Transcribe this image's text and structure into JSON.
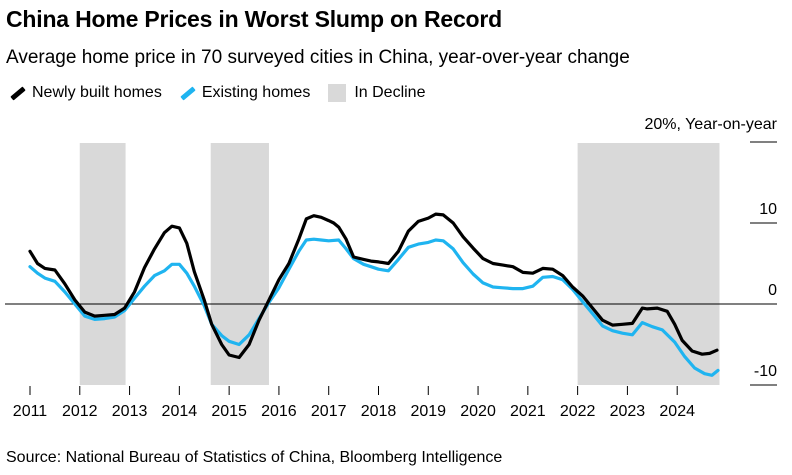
{
  "header": {
    "title": "China Home Prices in Worst Slump on Record",
    "subtitle": "Average home price in 70 surveyed cities in China, year-over-year change"
  },
  "legend": {
    "items": [
      {
        "label": "Newly built homes",
        "color": "#000000",
        "kind": "line"
      },
      {
        "label": "Existing homes",
        "color": "#1fb4f0",
        "kind": "line"
      },
      {
        "label": "In Decline",
        "color": "#d9d9d9",
        "kind": "box"
      }
    ]
  },
  "footer": {
    "source": "Source: National Bureau of Statistics of China, Bloomberg Intelligence"
  },
  "chart_data": {
    "type": "line",
    "ylabel_top": "20%, Year-on-year",
    "ylim": [
      -10,
      20
    ],
    "y_ticks": [
      20,
      10,
      0,
      -10
    ],
    "y_tick_labels": [
      "",
      "10",
      "0",
      "-10"
    ],
    "x_ticks": [
      "2011",
      "2012",
      "2013",
      "2014",
      "2015",
      "2016",
      "2017",
      "2018",
      "2019",
      "2020",
      "2021",
      "2022",
      "2023",
      "2024"
    ],
    "x_range": [
      2011.0,
      2024.9
    ],
    "decline_periods": [
      [
        2012.0,
        2012.92
      ],
      [
        2014.63,
        2015.8
      ],
      [
        2022.0,
        2024.85
      ]
    ],
    "series": [
      {
        "name": "Newly built homes",
        "color": "#000000",
        "points": [
          [
            2011.0,
            6.5
          ],
          [
            2011.15,
            5.0
          ],
          [
            2011.3,
            4.4
          ],
          [
            2011.5,
            4.2
          ],
          [
            2011.7,
            2.5
          ],
          [
            2011.9,
            0.5
          ],
          [
            2012.1,
            -1.0
          ],
          [
            2012.3,
            -1.5
          ],
          [
            2012.5,
            -1.4
          ],
          [
            2012.7,
            -1.3
          ],
          [
            2012.9,
            -0.5
          ],
          [
            2013.1,
            1.5
          ],
          [
            2013.3,
            4.5
          ],
          [
            2013.5,
            6.8
          ],
          [
            2013.7,
            8.8
          ],
          [
            2013.85,
            9.6
          ],
          [
            2014.0,
            9.4
          ],
          [
            2014.15,
            7.5
          ],
          [
            2014.3,
            4.0
          ],
          [
            2014.5,
            0.5
          ],
          [
            2014.65,
            -2.5
          ],
          [
            2014.85,
            -5.0
          ],
          [
            2015.0,
            -6.3
          ],
          [
            2015.2,
            -6.6
          ],
          [
            2015.4,
            -5.0
          ],
          [
            2015.6,
            -2.0
          ],
          [
            2015.8,
            0.5
          ],
          [
            2016.0,
            3.0
          ],
          [
            2016.2,
            5.0
          ],
          [
            2016.4,
            8.0
          ],
          [
            2016.55,
            10.5
          ],
          [
            2016.7,
            10.9
          ],
          [
            2016.85,
            10.7
          ],
          [
            2017.0,
            10.3
          ],
          [
            2017.1,
            10.0
          ],
          [
            2017.2,
            9.5
          ],
          [
            2017.35,
            8.0
          ],
          [
            2017.5,
            5.8
          ],
          [
            2017.7,
            5.5
          ],
          [
            2017.85,
            5.3
          ],
          [
            2018.0,
            5.2
          ],
          [
            2018.2,
            5.0
          ],
          [
            2018.4,
            6.5
          ],
          [
            2018.6,
            9.0
          ],
          [
            2018.8,
            10.2
          ],
          [
            2019.0,
            10.6
          ],
          [
            2019.15,
            11.1
          ],
          [
            2019.3,
            11.0
          ],
          [
            2019.5,
            10.0
          ],
          [
            2019.7,
            8.3
          ],
          [
            2019.9,
            6.9
          ],
          [
            2020.1,
            5.6
          ],
          [
            2020.3,
            5.0
          ],
          [
            2020.5,
            4.8
          ],
          [
            2020.7,
            4.6
          ],
          [
            2020.9,
            3.9
          ],
          [
            2021.1,
            3.8
          ],
          [
            2021.3,
            4.4
          ],
          [
            2021.5,
            4.3
          ],
          [
            2021.7,
            3.5
          ],
          [
            2021.9,
            2.1
          ],
          [
            2022.1,
            1.0
          ],
          [
            2022.3,
            -0.5
          ],
          [
            2022.5,
            -2.0
          ],
          [
            2022.7,
            -2.6
          ],
          [
            2022.9,
            -2.5
          ],
          [
            2023.1,
            -2.4
          ],
          [
            2023.3,
            -0.5
          ],
          [
            2023.4,
            -0.6
          ],
          [
            2023.6,
            -0.5
          ],
          [
            2023.8,
            -0.9
          ],
          [
            2023.95,
            -2.5
          ],
          [
            2024.1,
            -4.5
          ],
          [
            2024.3,
            -5.8
          ],
          [
            2024.5,
            -6.2
          ],
          [
            2024.65,
            -6.1
          ],
          [
            2024.8,
            -5.7
          ]
        ]
      },
      {
        "name": "Existing homes",
        "color": "#1fb4f0",
        "points": [
          [
            2011.0,
            4.6
          ],
          [
            2011.15,
            3.8
          ],
          [
            2011.3,
            3.2
          ],
          [
            2011.5,
            2.8
          ],
          [
            2011.7,
            1.5
          ],
          [
            2011.9,
            0.0
          ],
          [
            2012.1,
            -1.5
          ],
          [
            2012.3,
            -1.9
          ],
          [
            2012.5,
            -1.8
          ],
          [
            2012.7,
            -1.6
          ],
          [
            2012.9,
            -0.8
          ],
          [
            2013.1,
            0.7
          ],
          [
            2013.3,
            2.2
          ],
          [
            2013.5,
            3.5
          ],
          [
            2013.7,
            4.1
          ],
          [
            2013.85,
            4.9
          ],
          [
            2014.0,
            4.9
          ],
          [
            2014.15,
            3.8
          ],
          [
            2014.3,
            2.2
          ],
          [
            2014.5,
            -0.2
          ],
          [
            2014.65,
            -2.5
          ],
          [
            2014.85,
            -3.9
          ],
          [
            2015.0,
            -4.6
          ],
          [
            2015.2,
            -5.0
          ],
          [
            2015.4,
            -3.8
          ],
          [
            2015.6,
            -1.8
          ],
          [
            2015.8,
            0.2
          ],
          [
            2016.0,
            2.0
          ],
          [
            2016.2,
            4.3
          ],
          [
            2016.4,
            6.5
          ],
          [
            2016.55,
            7.9
          ],
          [
            2016.7,
            8.0
          ],
          [
            2016.85,
            7.9
          ],
          [
            2017.0,
            7.8
          ],
          [
            2017.2,
            7.9
          ],
          [
            2017.35,
            6.8
          ],
          [
            2017.5,
            5.6
          ],
          [
            2017.7,
            4.9
          ],
          [
            2017.85,
            4.6
          ],
          [
            2018.0,
            4.3
          ],
          [
            2018.2,
            4.1
          ],
          [
            2018.4,
            5.5
          ],
          [
            2018.6,
            7.0
          ],
          [
            2018.8,
            7.4
          ],
          [
            2019.0,
            7.6
          ],
          [
            2019.15,
            7.9
          ],
          [
            2019.3,
            7.8
          ],
          [
            2019.5,
            6.8
          ],
          [
            2019.7,
            5.1
          ],
          [
            2019.9,
            3.7
          ],
          [
            2020.1,
            2.6
          ],
          [
            2020.3,
            2.1
          ],
          [
            2020.5,
            2.0
          ],
          [
            2020.7,
            1.9
          ],
          [
            2020.9,
            1.9
          ],
          [
            2021.1,
            2.2
          ],
          [
            2021.3,
            3.3
          ],
          [
            2021.5,
            3.4
          ],
          [
            2021.7,
            3.0
          ],
          [
            2021.9,
            1.8
          ],
          [
            2022.1,
            0.3
          ],
          [
            2022.3,
            -1.2
          ],
          [
            2022.5,
            -2.7
          ],
          [
            2022.7,
            -3.3
          ],
          [
            2022.9,
            -3.6
          ],
          [
            2023.1,
            -3.8
          ],
          [
            2023.3,
            -2.3
          ],
          [
            2023.5,
            -2.8
          ],
          [
            2023.7,
            -3.2
          ],
          [
            2023.95,
            -4.7
          ],
          [
            2024.15,
            -6.5
          ],
          [
            2024.35,
            -7.9
          ],
          [
            2024.55,
            -8.6
          ],
          [
            2024.7,
            -8.8
          ],
          [
            2024.82,
            -8.2
          ]
        ]
      }
    ]
  }
}
